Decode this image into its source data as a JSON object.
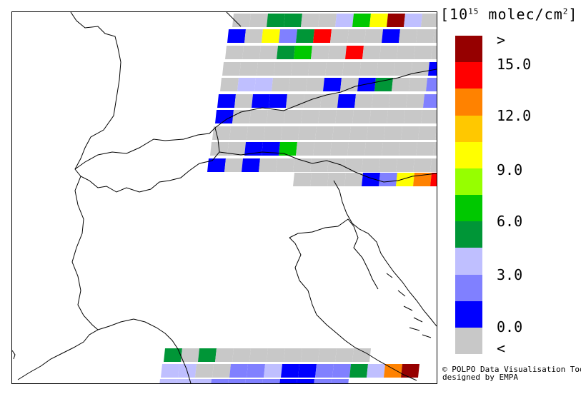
{
  "unit": {
    "prefix": "[10",
    "exp": "15",
    "suffix": " molec/cm",
    "exp2": "2",
    "close": "]"
  },
  "legend": {
    "colors": [
      "#c8c8c8",
      "#0000ff",
      "#8080ff",
      "#bfbfff",
      "#009637",
      "#00c800",
      "#96ff00",
      "#ffff00",
      "#ffc800",
      "#ff8200",
      "#ff0000",
      "#960000"
    ],
    "labels": [
      ">",
      "15.0",
      "12.0",
      "9.0",
      "6.0",
      "3.0",
      "0.0",
      "<"
    ]
  },
  "credit": {
    "line1": "© POLPO Data Visualisation Tool",
    "line2": "designed by EMPA"
  },
  "swaths": [
    {
      "x0": 326,
      "y0": 18,
      "cells": "GGEEGGDFHLDGCBBHGG"
    },
    {
      "x0": 319,
      "y0": 40,
      "cells": "BGHCEKGGGBGGGGBBGB"
    },
    {
      "x0": 316,
      "y0": 63,
      "cells": "GGGEFGGKGGGGGGGGDBG"
    },
    {
      "x0": 312,
      "y0": 86,
      "cells": "GGGGGGGGGGGGBGGCGGCB"
    },
    {
      "x0": 309,
      "y0": 108,
      "cells": "GDDGGGBGBEGGCGEKJGFD"
    },
    {
      "x0": 305,
      "y0": 131,
      "cells": "BGBBGGGBGGGGCGGEGGGG"
    },
    {
      "x0": 302,
      "y0": 153,
      "cells": "BGGGGGGGGGGGGGBGBBGG"
    },
    {
      "x0": 298,
      "y0": 176,
      "cells": "GGGGGGGGGGGGGGGBGGBGG"
    },
    {
      "x0": 295,
      "y0": 198,
      "cells": "GGBBFGGGGGGGGGBGGGBEKLL"
    },
    {
      "x0": 291,
      "y0": 221,
      "cells": "BGBGGGGGGGGGGGGGCEIKL"
    },
    {
      "x0": 411,
      "y0": 241,
      "cells": "GGGGBCHJKLLF"
    },
    {
      "x0": 230,
      "y0": 487,
      "cells": "EGEGGGGGGGGG"
    },
    {
      "x0": 226,
      "y0": 509,
      "cells": "DDGGCCDBBCCEDJL"
    },
    {
      "x0": 223,
      "y0": 530,
      "cells": "DDDCCCCBBCC"
    }
  ]
}
